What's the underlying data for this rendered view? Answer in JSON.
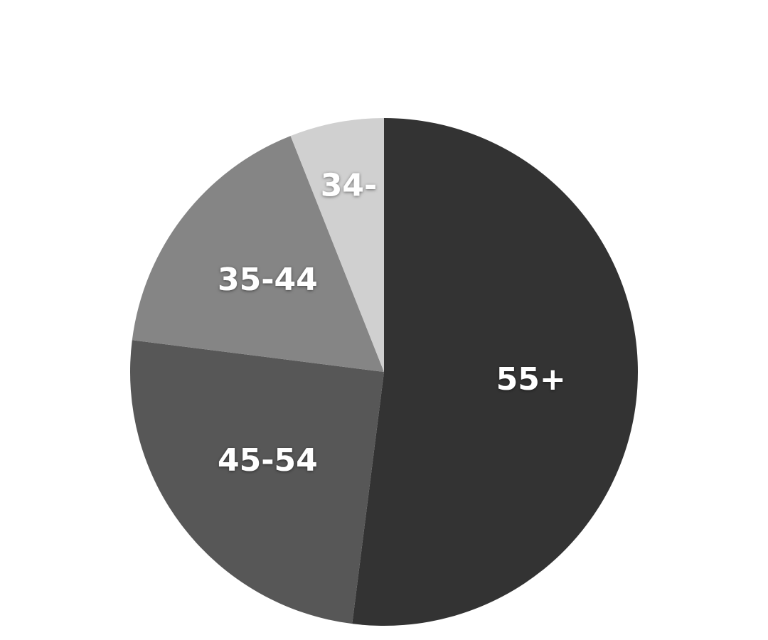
{
  "chart_data": {
    "type": "pie",
    "categories": [
      "55+",
      "45-54",
      "35-44",
      "34-"
    ],
    "values": [
      52,
      25,
      17,
      6
    ],
    "colors": [
      "#333333",
      "#575757",
      "#858585",
      "#d0d0d0"
    ],
    "start_angle": 0,
    "direction": "clockwise"
  }
}
